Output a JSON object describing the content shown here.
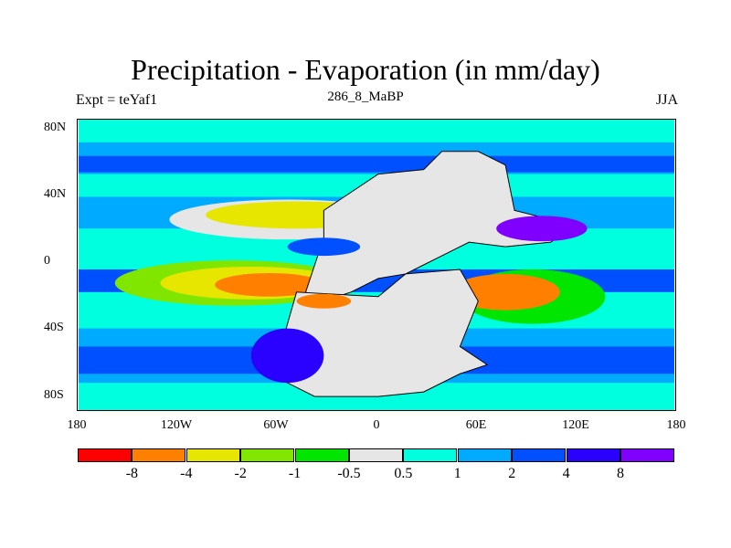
{
  "title": "Precipitation - Evaporation (in mm/day)",
  "left_string": "Expt = teYaf1",
  "center_string": "286_8_MaBP",
  "right_string": "JJA",
  "axes": {
    "lat_labels": [
      "80N",
      "40N",
      "0",
      "40S",
      "80S"
    ],
    "lon_labels": [
      "180",
      "120W",
      "60W",
      "0",
      "60E",
      "120E",
      "180"
    ]
  },
  "colorbar": {
    "colors": [
      "#ff0000",
      "#ff8000",
      "#e6e600",
      "#80e600",
      "#00e600",
      "#e6e6e6",
      "#00ffde",
      "#00aaff",
      "#0050ff",
      "#2a00ff",
      "#8000ff"
    ],
    "labels": [
      "-8",
      "-4",
      "-2",
      "-1",
      "-0.5",
      "0.5",
      "1",
      "2",
      "4",
      "8"
    ]
  }
}
